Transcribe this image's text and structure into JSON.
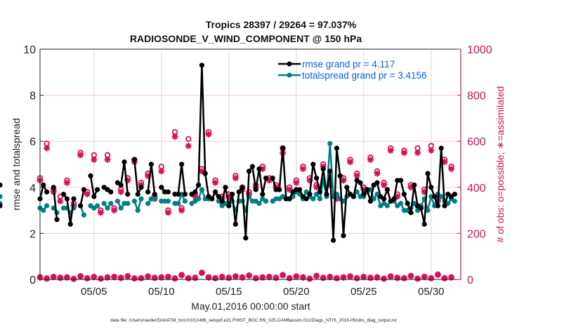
{
  "chart_data": {
    "type": "line",
    "title": "Tropics 28397 / 29264 = 97.037%",
    "subtitle": "RADIOSONDE_V_WIND_COMPONENT @ 150 hPa",
    "xlabel": "May.01,2016 00:00:00 start",
    "ylabel": "rmse and totalspread",
    "y2label": "# of obs: o=possible; ∗=assimilated",
    "footnote": "data file: /Users/raeder/DAI/ATM_forcXX/CAM6_setup/f.e21.FHIST_BGC.f09_025.CAM6assim.011/Diags_NTrS_2016-05/obs_diag_output.nc",
    "xlim": [
      1,
      32.2
    ],
    "ylim": [
      0,
      10
    ],
    "y2lim": [
      0,
      1000
    ],
    "xticks": [
      5,
      10,
      15,
      20,
      25,
      30
    ],
    "xtick_labels": [
      "05/05",
      "05/10",
      "05/15",
      "05/20",
      "05/25",
      "05/30"
    ],
    "yticks": [
      0,
      2,
      4,
      6,
      8,
      10
    ],
    "y2ticks": [
      0,
      200,
      400,
      600,
      800,
      1000
    ],
    "grid": true,
    "legend_position": "top-right",
    "legend": [
      {
        "label": "rmse grand pr = 4.117",
        "color": "#000000"
      },
      {
        "label": "totalspread grand pr = 3.4156",
        "color": "#008080"
      }
    ],
    "colors": {
      "rmse": "#000000",
      "spread": "#008080",
      "obs": "#d6105a",
      "legend_text": "#0b5cf0",
      "y2axis": "#c8145a"
    },
    "x_6h": [
      1.0,
      1.25,
      1.5,
      1.75,
      2.0,
      2.25,
      2.5,
      2.75,
      3.0,
      3.25,
      3.5,
      3.75,
      4.0,
      4.25,
      4.5,
      4.75,
      5.0,
      5.25,
      5.5,
      5.75,
      6.0,
      6.25,
      6.5,
      6.75,
      7.0,
      7.25,
      7.5,
      7.75,
      8.0,
      8.25,
      8.5,
      8.75,
      9.0,
      9.25,
      9.5,
      9.75,
      10.0,
      10.25,
      10.5,
      10.75,
      11.0,
      11.25,
      11.5,
      11.75,
      12.0,
      12.25,
      12.5,
      12.75,
      13.0,
      13.25,
      13.5,
      13.75,
      14.0,
      14.25,
      14.5,
      14.75,
      15.0,
      15.25,
      15.5,
      15.75,
      16.0,
      16.25,
      16.5,
      16.75,
      17.0,
      17.25,
      17.5,
      17.75,
      18.0,
      18.25,
      18.5,
      18.75,
      19.0,
      19.25,
      19.5,
      19.75,
      20.0,
      20.25,
      20.5,
      20.75,
      21.0,
      21.25,
      21.5,
      21.75,
      22.0,
      22.25,
      22.5,
      22.75,
      23.0,
      23.25,
      23.5,
      23.75,
      24.0,
      24.25,
      24.5,
      24.75,
      25.0,
      25.25,
      25.5,
      25.75,
      26.0,
      26.25,
      26.5,
      26.75,
      27.0,
      27.25,
      27.5,
      27.75,
      28.0,
      28.25,
      28.5,
      28.75,
      29.0,
      29.25,
      29.5,
      29.75,
      30.0,
      30.25,
      30.5,
      30.75,
      31.0,
      31.25,
      31.5,
      31.75
    ],
    "series": [
      {
        "name": "rmse",
        "values": [
          3.5,
          4.1,
          3.8,
          null,
          4.0,
          2.6,
          null,
          3.7,
          3.5,
          2.4,
          3.5,
          null,
          3.2,
          3.9,
          null,
          4.5,
          3.6,
          3.9,
          null,
          4.0,
          3.9,
          3.8,
          null,
          4.2,
          4.1,
          5.1,
          3.7,
          null,
          5.2,
          3.7,
          4.0,
          null,
          3.8,
          5.0,
          3.7,
          null,
          4.0,
          3.8,
          3.8,
          null,
          3.7,
          3.7,
          5.0,
          3.7,
          null,
          3.7,
          3.8,
          4.1,
          9.3,
          4.6,
          3.6,
          3.5,
          3.8,
          3.6,
          3.4,
          4.0,
          3.2,
          3.7,
          2.4,
          3.8,
          4.0,
          1.8,
          4.7,
          4.9,
          3.9,
          4.8,
          3.7,
          4.4,
          null,
          4.4,
          3.9,
          3.9,
          5.7,
          3.5,
          3.5,
          3.8,
          3.9,
          3.9,
          3.6,
          3.5,
          3.7,
          5.0,
          4.4,
          3.8,
          4.8,
          3.7,
          4.7,
          1.7,
          5.7,
          4.5,
          1.9,
          4.0,
          3.7,
          3.6,
          4.3,
          4.2,
          3.7,
          3.9,
          3.4,
          4.1,
          4.2,
          3.6,
          3.5,
          3.9,
          3.4,
          3.5,
          4.3,
          4.3,
          3.7,
          3.3,
          2.9,
          4.1,
          3.2,
          3.1,
          2.4,
          4.6,
          4.0,
          3.6,
          3.2,
          5.7,
          3.2,
          3.7,
          3.6,
          3.7,
          4.1,
          3.2
        ]
      },
      {
        "name": "totalspread",
        "values": [
          3.1,
          3.0,
          3.2,
          null,
          3.1,
          2.9,
          null,
          3.1,
          3.1,
          2.9,
          3.1,
          null,
          3.2,
          2.8,
          null,
          3.2,
          3.1,
          3.2,
          null,
          3.3,
          3.1,
          3.3,
          null,
          3.4,
          3.1,
          3.3,
          3.3,
          null,
          3.4,
          3.0,
          3.5,
          null,
          3.3,
          3.5,
          3.5,
          null,
          3.4,
          3.4,
          3.4,
          null,
          3.3,
          3.3,
          3.7,
          3.4,
          null,
          3.3,
          3.4,
          3.5,
          3.9,
          3.5,
          3.5,
          3.5,
          3.8,
          3.4,
          3.2,
          3.3,
          3.3,
          3.4,
          3.0,
          3.4,
          3.4,
          3.0,
          3.6,
          3.4,
          3.4,
          3.3,
          3.5,
          3.4,
          null,
          3.4,
          3.5,
          3.5,
          3.6,
          3.5,
          3.5,
          3.6,
          3.8,
          3.7,
          3.5,
          3.8,
          3.6,
          3.5,
          3.7,
          3.5,
          4.3,
          3.6,
          5.9,
          3.6,
          3.7,
          3.5,
          3.4,
          3.6,
          3.7,
          3.6,
          3.8,
          3.6,
          3.6,
          3.8,
          3.9,
          3.5,
          3.7,
          3.2,
          3.3,
          3.2,
          3.4,
          3.4,
          3.2,
          3.3,
          3.0,
          3.0,
          3.1,
          3.3,
          3.0,
          3.2,
          3.5,
          3.0,
          3.6,
          3.2,
          3.7,
          3.6,
          3.4,
          3.3,
          3.5,
          3.4,
          3.6,
          3.3
        ]
      }
    ],
    "x_12h": [
      1.0,
      1.5,
      2.0,
      2.5,
      3.0,
      3.5,
      4.0,
      4.5,
      5.0,
      5.5,
      6.0,
      6.5,
      7.0,
      7.5,
      8.0,
      8.5,
      9.0,
      9.5,
      10.0,
      10.5,
      11.0,
      11.5,
      12.0,
      12.5,
      13.0,
      13.5,
      14.0,
      14.5,
      15.0,
      15.5,
      16.0,
      16.5,
      17.0,
      17.5,
      18.0,
      18.5,
      19.0,
      19.5,
      20.0,
      20.5,
      21.0,
      21.5,
      22.0,
      22.5,
      23.0,
      23.5,
      24.0,
      24.5,
      25.0,
      25.5,
      26.0,
      26.5,
      27.0,
      27.5,
      28.0,
      28.5,
      29.0,
      29.5,
      30.0,
      30.5,
      31.0,
      31.5
    ],
    "obs_upper_possible": [
      440,
      590,
      390,
      360,
      430,
      330,
      550,
      380,
      540,
      300,
      540,
      310,
      390,
      440,
      520,
      420,
      460,
      360,
      490,
      300,
      640,
      310,
      610,
      370,
      480,
      640,
      430,
      360,
      370,
      450,
      400,
      380,
      410,
      490,
      440,
      410,
      570,
      400,
      430,
      490,
      440,
      410,
      500,
      420,
      360,
      440,
      520,
      460,
      400,
      530,
      470,
      420,
      570,
      370,
      560,
      410,
      570,
      390,
      580,
      350,
      520,
      490
    ],
    "obs_upper_assimilated": [
      430,
      570,
      380,
      340,
      420,
      320,
      540,
      370,
      520,
      290,
      520,
      300,
      380,
      430,
      510,
      410,
      450,
      350,
      470,
      290,
      620,
      300,
      580,
      360,
      470,
      630,
      420,
      350,
      360,
      440,
      390,
      370,
      400,
      480,
      430,
      400,
      550,
      390,
      420,
      480,
      430,
      400,
      490,
      410,
      350,
      430,
      510,
      450,
      390,
      520,
      460,
      410,
      560,
      360,
      550,
      400,
      550,
      380,
      560,
      340,
      510,
      480
    ],
    "obs_lower_possible": [
      10,
      5,
      12,
      8,
      10,
      3,
      15,
      6,
      12,
      4,
      10,
      12,
      8,
      15,
      5,
      6,
      14,
      8,
      10,
      12,
      5,
      20,
      6,
      8,
      30,
      10,
      6,
      12,
      8,
      14,
      10,
      18,
      6,
      10,
      12,
      8,
      20,
      6,
      14,
      10,
      4,
      16,
      8,
      12,
      6,
      10,
      14,
      6,
      12,
      8,
      10,
      4,
      14,
      8,
      6,
      16,
      4,
      12,
      6,
      22,
      6,
      10
    ],
    "obs_lower_assimilated": [
      8,
      3,
      10,
      6,
      8,
      2,
      12,
      4,
      10,
      3,
      8,
      10,
      6,
      12,
      4,
      5,
      12,
      6,
      8,
      10,
      4,
      18,
      5,
      6,
      28,
      8,
      5,
      10,
      6,
      12,
      8,
      16,
      5,
      8,
      10,
      6,
      18,
      5,
      12,
      8,
      3,
      14,
      6,
      10,
      5,
      8,
      12,
      5,
      10,
      6,
      8,
      3,
      12,
      6,
      5,
      14,
      3,
      10,
      5,
      20,
      5,
      8
    ]
  }
}
